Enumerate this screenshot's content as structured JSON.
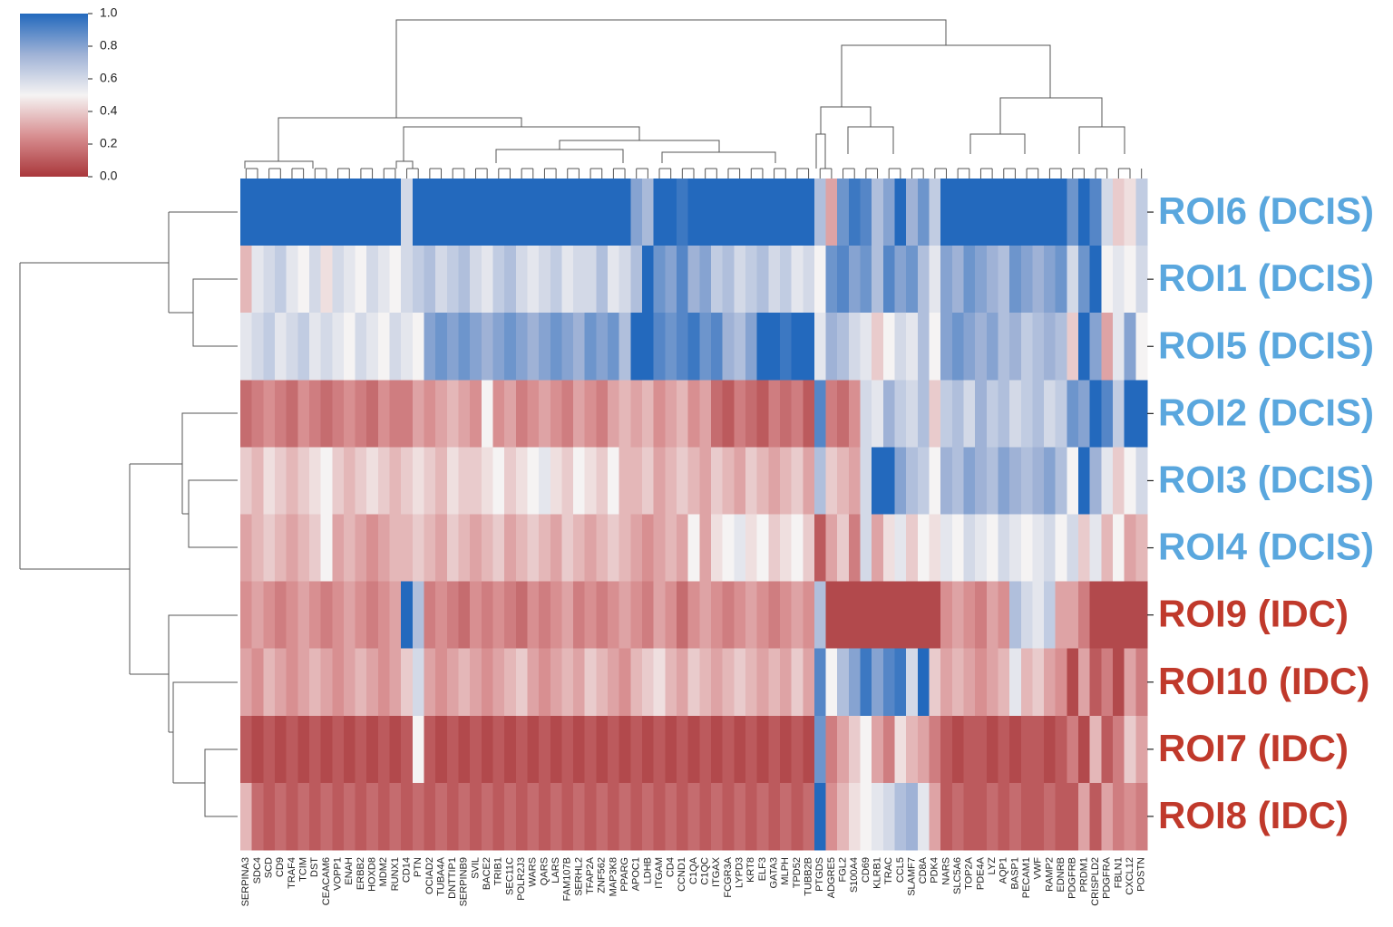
{
  "chart_data": {
    "type": "heatmap",
    "rows": [
      "ROI6 (DCIS)",
      "ROI1 (DCIS)",
      "ROI5 (DCIS)",
      "ROI2 (DCIS)",
      "ROI3 (DCIS)",
      "ROI4 (DCIS)",
      "ROI9 (IDC)",
      "ROI10 (IDC)",
      "ROI7 (IDC)",
      "ROI8 (IDC)"
    ],
    "row_label_colors": [
      "#5aa7de",
      "#5aa7de",
      "#5aa7de",
      "#5aa7de",
      "#5aa7de",
      "#5aa7de",
      "#c0392b",
      "#c0392b",
      "#c0392b",
      "#c0392b"
    ],
    "columns": [
      "SERPINA3",
      "SDC4",
      "SCD",
      "CD9",
      "TRAF4",
      "TCIM",
      "DST",
      "CEACAM6",
      "VOPP1",
      "ENAH",
      "ERBB2",
      "HOXD8",
      "MDM2",
      "RUNX1",
      "CD14",
      "PTN",
      "OCIAD2",
      "TUBA4A",
      "DNTTIP1",
      "SERPINB9",
      "SVIL",
      "BACE2",
      "TRIB1",
      "SEC11C",
      "POLR2J3",
      "WARS",
      "QARS",
      "LARS",
      "FAM107B",
      "SERHL2",
      "TFAP2A",
      "ZNF562",
      "MAP3K8",
      "PPARG",
      "APOC1",
      "LDHB",
      "ITGAM",
      "CD4",
      "CCND1",
      "C1QA",
      "C1QC",
      "ITGAX",
      "FCGR3A",
      "LYPD3",
      "KRT8",
      "ELF3",
      "GATA3",
      "MLPH",
      "TPD52",
      "TUBB2B",
      "PTGDS",
      "ADGRE5",
      "FGL2",
      "S100A4",
      "CD69",
      "KLRB1",
      "TRAC",
      "CCL5",
      "SLAMF7",
      "CD8A",
      "PDK4",
      "NARS",
      "SLC5A6",
      "TOP2A",
      "PDE4A",
      "LYZ",
      "AQP1",
      "BASP1",
      "PECAM1",
      "VWF",
      "RAMP2",
      "EDNRB",
      "PDGFRB",
      "PRDM1",
      "CRISPLD2",
      "PDGFRA",
      "FBLN1",
      "CXCL12",
      "POSTN"
    ],
    "values": [
      [
        1,
        1,
        1,
        1,
        1,
        1,
        1,
        1,
        1,
        1,
        1,
        1,
        1,
        1,
        0.6,
        1,
        1,
        1,
        1,
        1,
        1,
        1,
        1,
        1,
        1,
        1,
        1,
        1,
        1,
        1,
        1,
        1,
        1,
        1,
        0.8,
        0.72,
        1,
        1,
        0.95,
        1,
        1,
        1,
        1,
        1,
        1,
        1,
        1,
        1,
        1,
        1,
        0.7,
        0.3,
        0.85,
        0.95,
        0.9,
        0.7,
        0.8,
        1,
        0.75,
        0.85,
        0.65,
        1,
        1,
        1,
        1,
        1,
        1,
        1,
        1,
        1,
        1,
        1,
        0.85,
        1,
        0.9,
        0.6,
        0.4,
        0.45,
        0.65
      ],
      [
        0.35,
        0.55,
        0.6,
        0.65,
        0.55,
        0.5,
        0.6,
        0.45,
        0.6,
        0.55,
        0.5,
        0.6,
        0.55,
        0.5,
        0.6,
        0.65,
        0.7,
        0.6,
        0.65,
        0.7,
        0.6,
        0.55,
        0.65,
        0.7,
        0.6,
        0.55,
        0.6,
        0.65,
        0.55,
        0.6,
        0.6,
        0.7,
        0.55,
        0.6,
        0.7,
        1,
        0.85,
        0.8,
        0.9,
        0.75,
        0.8,
        0.65,
        0.7,
        0.6,
        0.65,
        0.7,
        0.6,
        0.65,
        0.55,
        0.6,
        0.5,
        0.85,
        0.9,
        0.8,
        0.85,
        0.7,
        0.9,
        0.8,
        0.85,
        0.7,
        0.55,
        0.8,
        0.75,
        0.85,
        0.8,
        0.75,
        0.7,
        0.85,
        0.8,
        0.75,
        0.8,
        0.85,
        0.6,
        0.85,
        1,
        0.5,
        0.55,
        0.5,
        0.6
      ],
      [
        0.55,
        0.6,
        0.65,
        0.55,
        0.6,
        0.65,
        0.55,
        0.6,
        0.55,
        0.5,
        0.6,
        0.55,
        0.5,
        0.6,
        0.55,
        0.5,
        0.8,
        0.85,
        0.8,
        0.85,
        0.8,
        0.75,
        0.8,
        0.85,
        0.8,
        0.75,
        0.8,
        0.85,
        0.8,
        0.75,
        0.85,
        0.8,
        0.85,
        0.7,
        1,
        1,
        0.9,
        0.85,
        0.9,
        0.95,
        0.85,
        0.9,
        0.75,
        0.7,
        0.8,
        1,
        1,
        0.95,
        1,
        1,
        0.55,
        0.75,
        0.7,
        0.6,
        0.55,
        0.4,
        0.5,
        0.6,
        0.55,
        0.7,
        0.5,
        0.8,
        0.85,
        0.8,
        0.75,
        0.8,
        0.7,
        0.75,
        0.65,
        0.7,
        0.75,
        0.7,
        0.4,
        1,
        0.8,
        0.3,
        0.55,
        0.8,
        0.5
      ],
      [
        0.15,
        0.2,
        0.25,
        0.2,
        0.15,
        0.25,
        0.2,
        0.15,
        0.2,
        0.25,
        0.2,
        0.15,
        0.25,
        0.2,
        0.2,
        0.3,
        0.25,
        0.3,
        0.35,
        0.3,
        0.25,
        0.5,
        0.25,
        0.3,
        0.2,
        0.25,
        0.3,
        0.25,
        0.2,
        0.3,
        0.25,
        0.2,
        0.3,
        0.35,
        0.3,
        0.35,
        0.25,
        0.3,
        0.35,
        0.25,
        0.3,
        0.15,
        0.1,
        0.2,
        0.15,
        0.1,
        0.2,
        0.15,
        0.2,
        0.1,
        0.9,
        0.2,
        0.15,
        0.25,
        0.6,
        0.55,
        0.75,
        0.65,
        0.6,
        0.7,
        0.4,
        0.65,
        0.7,
        0.6,
        0.75,
        0.65,
        0.7,
        0.6,
        0.65,
        0.7,
        0.6,
        0.65,
        0.85,
        0.8,
        1,
        0.9,
        0.65,
        1,
        1
      ],
      [
        0.4,
        0.35,
        0.45,
        0.4,
        0.35,
        0.4,
        0.45,
        0.5,
        0.4,
        0.35,
        0.4,
        0.45,
        0.4,
        0.35,
        0.4,
        0.45,
        0.4,
        0.35,
        0.45,
        0.4,
        0.4,
        0.45,
        0.5,
        0.4,
        0.45,
        0.5,
        0.55,
        0.45,
        0.4,
        0.5,
        0.45,
        0.4,
        0.5,
        0.35,
        0.35,
        0.4,
        0.3,
        0.35,
        0.4,
        0.35,
        0.3,
        0.4,
        0.35,
        0.3,
        0.4,
        0.35,
        0.3,
        0.35,
        0.4,
        0.3,
        0.7,
        0.4,
        0.35,
        0.3,
        0.6,
        1,
        1,
        0.8,
        0.7,
        0.65,
        0.5,
        0.75,
        0.7,
        0.8,
        0.75,
        0.7,
        0.8,
        0.75,
        0.7,
        0.75,
        0.8,
        0.7,
        0.5,
        1,
        0.75,
        0.55,
        0.4,
        0.5,
        0.6
      ],
      [
        0.3,
        0.35,
        0.4,
        0.35,
        0.3,
        0.35,
        0.4,
        0.5,
        0.3,
        0.35,
        0.3,
        0.25,
        0.3,
        0.35,
        0.35,
        0.4,
        0.35,
        0.3,
        0.4,
        0.35,
        0.3,
        0.35,
        0.4,
        0.3,
        0.35,
        0.4,
        0.35,
        0.3,
        0.4,
        0.35,
        0.3,
        0.35,
        0.4,
        0.35,
        0.3,
        0.25,
        0.3,
        0.35,
        0.3,
        0.5,
        0.3,
        0.45,
        0.5,
        0.55,
        0.45,
        0.5,
        0.4,
        0.45,
        0.5,
        0.4,
        0.1,
        0.3,
        0.4,
        0.2,
        0.6,
        0.3,
        0.45,
        0.55,
        0.4,
        0.5,
        0.45,
        0.55,
        0.5,
        0.6,
        0.55,
        0.5,
        0.6,
        0.55,
        0.5,
        0.55,
        0.6,
        0.5,
        0.6,
        0.4,
        0.55,
        0.35,
        0.5,
        0.3,
        0.35
      ],
      [
        0.25,
        0.3,
        0.25,
        0.2,
        0.25,
        0.3,
        0.25,
        0.2,
        0.25,
        0.3,
        0.25,
        0.2,
        0.25,
        0.3,
        1,
        0.7,
        0.2,
        0.25,
        0.2,
        0.15,
        0.25,
        0.2,
        0.25,
        0.2,
        0.15,
        0.25,
        0.2,
        0.25,
        0.3,
        0.2,
        0.25,
        0.2,
        0.25,
        0.3,
        0.25,
        0.2,
        0.3,
        0.25,
        0.15,
        0.25,
        0.3,
        0.25,
        0.2,
        0.25,
        0.3,
        0.25,
        0.2,
        0.25,
        0.3,
        0.25,
        0.7,
        0.05,
        0.05,
        0.05,
        0.05,
        0.05,
        0.05,
        0.05,
        0.05,
        0.05,
        0.05,
        0.25,
        0.3,
        0.25,
        0.2,
        0.3,
        0.25,
        0.7,
        0.6,
        0.55,
        0.65,
        0.3,
        0.3,
        0.2,
        0.05,
        0.05,
        0.05,
        0.05,
        0.05
      ],
      [
        0.3,
        0.25,
        0.35,
        0.3,
        0.25,
        0.3,
        0.35,
        0.3,
        0.25,
        0.3,
        0.35,
        0.3,
        0.25,
        0.3,
        0.4,
        0.6,
        0.3,
        0.25,
        0.3,
        0.35,
        0.3,
        0.25,
        0.3,
        0.35,
        0.4,
        0.3,
        0.25,
        0.3,
        0.35,
        0.3,
        0.4,
        0.35,
        0.3,
        0.25,
        0.35,
        0.4,
        0.45,
        0.35,
        0.3,
        0.4,
        0.35,
        0.3,
        0.35,
        0.4,
        0.35,
        0.3,
        0.35,
        0.3,
        0.4,
        0.3,
        0.9,
        0.5,
        0.7,
        0.8,
        0.95,
        0.8,
        0.9,
        0.95,
        0.6,
        1,
        0.4,
        0.3,
        0.35,
        0.3,
        0.25,
        0.3,
        0.35,
        0.55,
        0.35,
        0.4,
        0.3,
        0.25,
        0.05,
        0.3,
        0.1,
        0.2,
        0.05,
        0.3,
        0.2
      ],
      [
        0.1,
        0.05,
        0.1,
        0.05,
        0.1,
        0.05,
        0.1,
        0.05,
        0.1,
        0.05,
        0.1,
        0.05,
        0.1,
        0.05,
        0.1,
        0.5,
        0.1,
        0.05,
        0.1,
        0.05,
        0.1,
        0.05,
        0.1,
        0.05,
        0.1,
        0.05,
        0.1,
        0.05,
        0.1,
        0.05,
        0.1,
        0.05,
        0.1,
        0.05,
        0.1,
        0.05,
        0.1,
        0.05,
        0.1,
        0.05,
        0.1,
        0.05,
        0.1,
        0.05,
        0.1,
        0.05,
        0.1,
        0.05,
        0.1,
        0.05,
        0.85,
        0.2,
        0.3,
        0.4,
        0.5,
        0.3,
        0.2,
        0.45,
        0.35,
        0.3,
        0.2,
        0.1,
        0.05,
        0.1,
        0.1,
        0.05,
        0.1,
        0.05,
        0.1,
        0.1,
        0.05,
        0.1,
        0.2,
        0.05,
        0.35,
        0.1,
        0.2,
        0.4,
        0.3
      ],
      [
        0.35,
        0.15,
        0.1,
        0.15,
        0.1,
        0.15,
        0.1,
        0.15,
        0.1,
        0.15,
        0.1,
        0.15,
        0.1,
        0.15,
        0.1,
        0.15,
        0.1,
        0.15,
        0.1,
        0.15,
        0.1,
        0.15,
        0.1,
        0.15,
        0.1,
        0.15,
        0.1,
        0.15,
        0.1,
        0.15,
        0.1,
        0.15,
        0.1,
        0.15,
        0.1,
        0.15,
        0.1,
        0.15,
        0.1,
        0.15,
        0.1,
        0.15,
        0.1,
        0.15,
        0.1,
        0.15,
        0.1,
        0.15,
        0.1,
        0.15,
        1,
        0.25,
        0.35,
        0.45,
        0.5,
        0.55,
        0.6,
        0.7,
        0.75,
        0.55,
        0.3,
        0.1,
        0.15,
        0.1,
        0.1,
        0.15,
        0.1,
        0.15,
        0.1,
        0.1,
        0.15,
        0.1,
        0.1,
        0.3,
        0.1,
        0.3,
        0.2,
        0.25,
        0.2
      ]
    ],
    "vlim": [
      0,
      1
    ],
    "colorbar_ticks": [
      {
        "value": 0,
        "label": "0.0"
      },
      {
        "value": 0.2,
        "label": "0.2"
      },
      {
        "value": 0.4,
        "label": "0.4"
      },
      {
        "value": 0.6,
        "label": "0.6"
      },
      {
        "value": 0.8,
        "label": "0.8"
      },
      {
        "value": 1,
        "label": "1.0"
      }
    ],
    "colormap": [
      "#a9373b",
      "#d88f91",
      "#f5f3f3",
      "#9fb2d6",
      "#2369bd"
    ]
  }
}
